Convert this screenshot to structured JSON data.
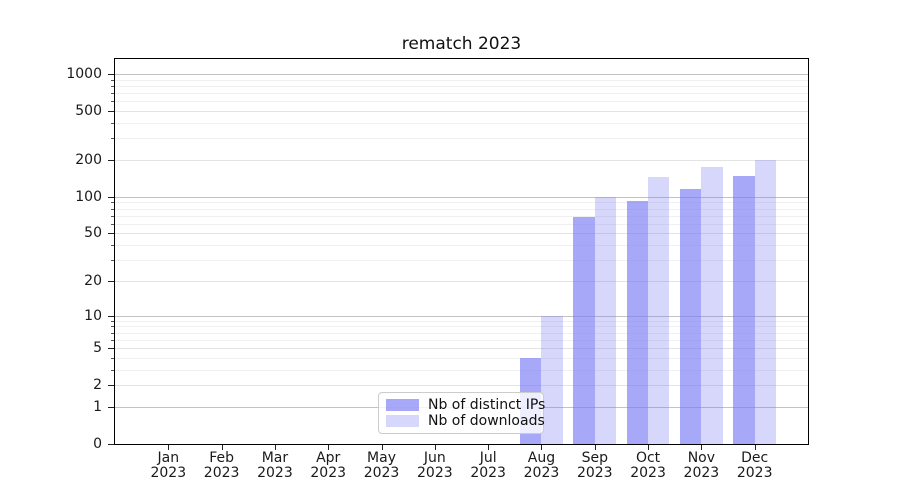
{
  "chart_data": {
    "type": "bar",
    "title": "rematch 2023",
    "categories": [
      "Jan",
      "Feb",
      "Mar",
      "Apr",
      "May",
      "Jun",
      "Jul",
      "Aug",
      "Sep",
      "Oct",
      "Nov",
      "Dec"
    ],
    "category_year": "2023",
    "series": [
      {
        "name": "Nb of distinct IPs",
        "color": "rgba(122,122,245,0.65)",
        "values": [
          0,
          0,
          0,
          0,
          0,
          0,
          0,
          4,
          68,
          92,
          115,
          148
        ]
      },
      {
        "name": "Nb of downloads",
        "color": "rgba(122,122,245,0.30)",
        "values": [
          0,
          0,
          0,
          0,
          0,
          0,
          0,
          10,
          100,
          145,
          175,
          200
        ]
      }
    ],
    "y_axis": {
      "scale": "symlog-log1p",
      "labeled_ticks": [
        0,
        1,
        2,
        5,
        10,
        20,
        50,
        100,
        200,
        500,
        1000
      ],
      "decade_ticks": [
        1,
        10,
        100,
        1000
      ],
      "mid_ticks": [
        2,
        5,
        20,
        50,
        200,
        500
      ],
      "minor_ticks": [
        3,
        4,
        6,
        7,
        8,
        9,
        30,
        40,
        60,
        70,
        80,
        90,
        300,
        400,
        600,
        700,
        800,
        900
      ],
      "min": 0,
      "max": 1000
    },
    "x_axis": {
      "label_line2": "2023"
    },
    "grid": true,
    "legend": {
      "position": "lower-center",
      "items": [
        "Nb of distinct IPs",
        "Nb of downloads"
      ]
    },
    "colors": {
      "bar_base": "#7a7af5",
      "grid_major": "#c3c3c3",
      "grid_mid": "#e3e3e3",
      "grid_minor": "#f0f0f0",
      "spine": "#000000",
      "text": "#1a1a1a",
      "background": "#ffffff"
    }
  }
}
